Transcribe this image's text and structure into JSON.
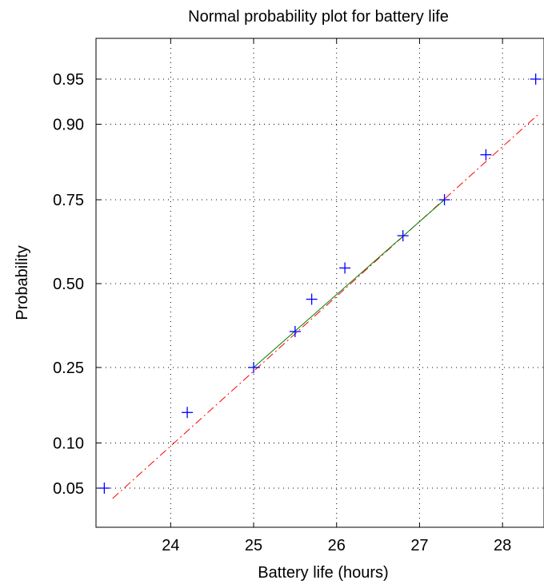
{
  "chart_data": {
    "type": "scatter",
    "title": "Normal probability plot for battery life",
    "xlabel": "Battery life (hours)",
    "ylabel": "Probability",
    "xlim": [
      23.1,
      28.5
    ],
    "x_scale": "linear",
    "y_scale": "normal-probability",
    "y_tick_probabilities": [
      0.05,
      0.1,
      0.25,
      0.5,
      0.75,
      0.9,
      0.95
    ],
    "x_ticks": [
      24,
      25,
      26,
      27,
      28
    ],
    "x_tick_labels": [
      "24",
      "25",
      "26",
      "27",
      "28"
    ],
    "y_tick_labels": [
      "0.05",
      "0.10",
      "0.25",
      "0.50",
      "0.75",
      "0.90",
      "0.95"
    ],
    "grid": true,
    "series": [
      {
        "kind": "points",
        "marker": "plus",
        "color": "#0000ff",
        "points": [
          {
            "x": 23.2,
            "y": 0.05
          },
          {
            "x": 24.2,
            "y": 0.15
          },
          {
            "x": 25.0,
            "y": 0.25
          },
          {
            "x": 25.5,
            "y": 0.35
          },
          {
            "x": 25.7,
            "y": 0.45
          },
          {
            "x": 26.1,
            "y": 0.55
          },
          {
            "x": 26.8,
            "y": 0.65
          },
          {
            "x": 27.3,
            "y": 0.75
          },
          {
            "x": 27.8,
            "y": 0.85
          },
          {
            "x": 28.4,
            "y": 0.95
          }
        ]
      },
      {
        "kind": "reference-line-extended",
        "style": "dash-dot",
        "color": "#ff0000",
        "points": [
          {
            "x": 23.3,
            "y": 0.042
          },
          {
            "x": 28.45,
            "y": 0.915
          }
        ]
      },
      {
        "kind": "reference-line-quartiles",
        "style": "solid",
        "color": "#008000",
        "points": [
          {
            "x": 25.0,
            "y": 0.25
          },
          {
            "x": 27.3,
            "y": 0.75
          }
        ]
      }
    ]
  }
}
